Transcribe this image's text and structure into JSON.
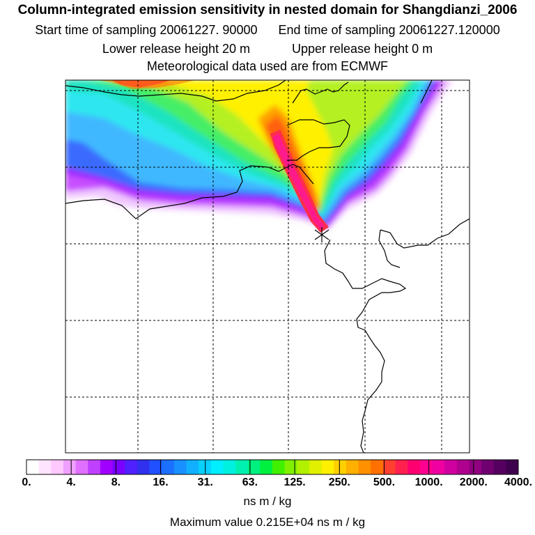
{
  "header": {
    "title": "Column-integrated emission sensitivity in nested domain for Shangdianzi_2006",
    "start_label": "Start time of sampling 20061227. 90000",
    "end_label": "End time of sampling 20061227.120000",
    "lower_label": "Lower release height   20 m",
    "upper_label": "Upper release height    0 m",
    "met_label": "Meteorological data used are from ECMWF"
  },
  "legend": {
    "ticks": [
      "0.",
      "4.",
      "8.",
      "16.",
      "31.",
      "63.",
      "125.",
      "250.",
      "500.",
      "1000.",
      "2000.",
      "4000."
    ],
    "units": "ns m / kg",
    "max_value": "Maximum value  0.215E+04 ns m / kg",
    "colors": [
      "#ffffff",
      "#ffe4ff",
      "#ffc8ff",
      "#f0a0ff",
      "#e070ff",
      "#c040ff",
      "#a000ff",
      "#7a00ff",
      "#5020ff",
      "#3030ee",
      "#2050ff",
      "#1c70ff",
      "#1890ff",
      "#10b0ff",
      "#08d0ff",
      "#00eeff",
      "#00f0e0",
      "#00f0b0",
      "#00f080",
      "#00f040",
      "#40f000",
      "#80f000",
      "#b0f000",
      "#e0f000",
      "#fff000",
      "#ffd000",
      "#ffb000",
      "#ff9000",
      "#ff7000",
      "#ff4030",
      "#ff2050",
      "#ff0070",
      "#ff0090",
      "#f000a0",
      "#d000a0",
      "#b00090",
      "#900080",
      "#700070",
      "#550060",
      "#400050"
    ]
  },
  "map": {
    "receptor": "Shangdianzi",
    "colors": {
      "frame": "#000000",
      "grid": "#000000",
      "coast": "#000000",
      "white": "#ffffff",
      "light_violet": "#f0c8ff",
      "violet": "#c850ff",
      "purple": "#9b20ff",
      "blue": "#3a6bff",
      "sky": "#40b8ff",
      "cyan": "#2de6f0",
      "teal": "#1fe3c0",
      "green": "#44ee66",
      "lime": "#b4f020",
      "yellow": "#fff000",
      "orange": "#ffa000",
      "deep_orange": "#ff6010",
      "red": "#ff2e4a",
      "magenta": "#ff1a8c",
      "dark_orange": "#ff7a00"
    }
  }
}
